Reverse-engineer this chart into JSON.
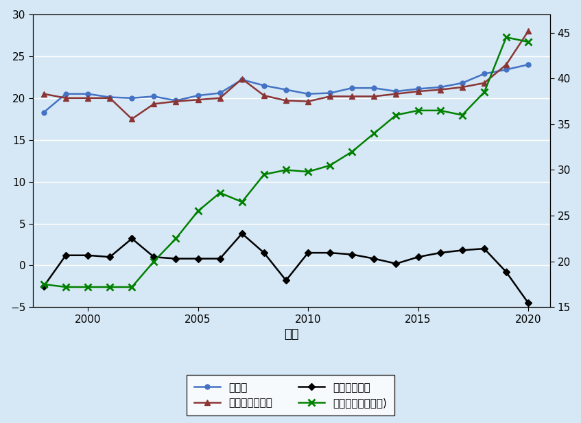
{
  "years": [
    1998,
    1999,
    2000,
    2001,
    2002,
    2003,
    2004,
    2005,
    2006,
    2007,
    2008,
    2009,
    2010,
    2011,
    2012,
    2013,
    2014,
    2015,
    2016,
    2017,
    2018,
    2019,
    2020
  ],
  "revenue": [
    18.3,
    20.5,
    20.5,
    20.1,
    20.0,
    20.2,
    19.7,
    20.3,
    20.6,
    22.2,
    21.5,
    21.0,
    20.5,
    20.6,
    21.2,
    21.2,
    20.8,
    21.1,
    21.3,
    21.8,
    22.9,
    23.4,
    24.0
  ],
  "expenditure": [
    20.5,
    20.0,
    20.0,
    20.0,
    17.5,
    19.3,
    19.6,
    19.8,
    20.0,
    22.3,
    20.3,
    19.7,
    19.6,
    20.2,
    20.2,
    20.2,
    20.5,
    20.8,
    21.0,
    21.3,
    21.8,
    24.0,
    28.0
  ],
  "balance": [
    -2.5,
    1.2,
    1.2,
    1.0,
    3.2,
    1.0,
    0.8,
    0.8,
    0.8,
    3.8,
    1.5,
    -1.8,
    1.5,
    1.5,
    1.3,
    0.8,
    0.2,
    1.0,
    1.5,
    1.8,
    2.0,
    -0.8,
    -4.5
  ],
  "debt_raw": [
    17.5,
    17.2,
    17.2,
    17.2,
    17.2,
    20.0,
    22.5,
    25.5,
    27.5,
    26.5,
    29.5,
    30.0,
    29.8,
    30.5,
    32.0,
    34.0,
    36.0,
    36.5,
    36.5,
    36.0,
    38.5,
    44.5,
    44.0
  ],
  "background_color": "#d6e8f5",
  "plot_bg_color": "#d6e8f5",
  "revenue_color": "#4472c4",
  "expenditure_color": "#8b3535",
  "balance_color": "#000000",
  "debt_color": "#008000",
  "ylim_left": [
    -5,
    30
  ],
  "ylim_right": [
    15,
    47
  ],
  "yticks_left": [
    -5,
    0,
    5,
    10,
    15,
    20,
    25,
    30
  ],
  "yticks_right": [
    15,
    20,
    25,
    30,
    35,
    40,
    45
  ],
  "xlim": [
    1997.5,
    2021.0
  ],
  "xticks": [
    2000,
    2005,
    2010,
    2015,
    2020
  ],
  "xlabel": "年次",
  "legend_labels": [
    "総歳入",
    "総歳出・純融資",
    "統合財政収支",
    "国家債務（右目盛)"
  ]
}
